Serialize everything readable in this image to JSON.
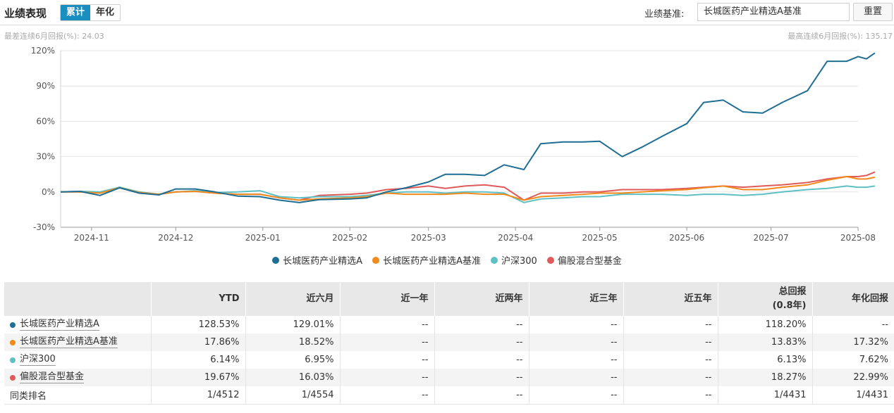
{
  "header": {
    "title": "业绩表现",
    "tabs": [
      {
        "label": "累计",
        "active": true
      },
      {
        "label": "年化",
        "active": false
      }
    ],
    "benchmark_label": "业绩基准:",
    "benchmark_value": "长城医药产业精选A基准",
    "reset_label": "重置"
  },
  "notes": {
    "left": "最差连续6月回报(%): 24.03",
    "right": "最高连续6月回报(%): 135.17"
  },
  "chart_data": {
    "type": "line",
    "title": "",
    "xlabel": "",
    "ylabel": "",
    "ylim": [
      -30,
      120
    ],
    "y_ticks": [
      -30,
      0,
      30,
      60,
      90,
      120
    ],
    "y_tick_labels": [
      "-30%",
      "0%",
      "30%",
      "60%",
      "90%",
      "120%"
    ],
    "x_range": [
      "2024-10-21",
      "2025-08-01"
    ],
    "x_ticks": [
      "2024-11-01",
      "2024-12-01",
      "2025-01-01",
      "2025-02-01",
      "2025-03-01",
      "2025-04-01",
      "2025-05-01",
      "2025-06-01",
      "2025-07-01",
      "2025-08-01"
    ],
    "x_tick_labels": [
      "2024-11",
      "2024-12",
      "2025-01",
      "2025-02",
      "2025-03",
      "2025-04",
      "2025-05",
      "2025-06",
      "2025-07",
      "2025-08"
    ],
    "grid": true,
    "legend_position": "bottom",
    "series": [
      {
        "name": "长城医药产业精选A",
        "color": "#1f6e94",
        "points": [
          [
            "2024-10-21",
            0
          ],
          [
            "2024-10-28",
            0.5
          ],
          [
            "2024-11-04",
            -3
          ],
          [
            "2024-11-11",
            3.5
          ],
          [
            "2024-11-18",
            -1
          ],
          [
            "2024-11-25",
            -2.5
          ],
          [
            "2024-12-01",
            2.5
          ],
          [
            "2024-12-08",
            2.5
          ],
          [
            "2024-12-15",
            0
          ],
          [
            "2024-12-23",
            -3.5
          ],
          [
            "2024-12-31",
            -4
          ],
          [
            "2025-01-07",
            -7
          ],
          [
            "2025-01-14",
            -9
          ],
          [
            "2025-01-21",
            -6.5
          ],
          [
            "2025-02-01",
            -6
          ],
          [
            "2025-02-07",
            -5
          ],
          [
            "2025-02-14",
            0
          ],
          [
            "2025-02-21",
            3.5
          ],
          [
            "2025-03-01",
            8.5
          ],
          [
            "2025-03-07",
            15
          ],
          [
            "2025-03-14",
            15
          ],
          [
            "2025-03-21",
            14
          ],
          [
            "2025-03-28",
            23
          ],
          [
            "2025-04-04",
            19
          ],
          [
            "2025-04-10",
            41
          ],
          [
            "2025-04-18",
            42.5
          ],
          [
            "2025-04-25",
            42.5
          ],
          [
            "2025-05-01",
            43
          ],
          [
            "2025-05-09",
            30
          ],
          [
            "2025-05-16",
            38
          ],
          [
            "2025-05-23",
            47
          ],
          [
            "2025-06-01",
            58
          ],
          [
            "2025-06-07",
            76
          ],
          [
            "2025-06-14",
            78
          ],
          [
            "2025-06-21",
            68
          ],
          [
            "2025-06-28",
            67
          ],
          [
            "2025-07-05",
            76
          ],
          [
            "2025-07-14",
            86
          ],
          [
            "2025-07-21",
            111
          ],
          [
            "2025-07-28",
            111
          ],
          [
            "2025-08-01",
            115
          ],
          [
            "2025-08-04",
            113
          ],
          [
            "2025-08-07",
            118
          ]
        ]
      },
      {
        "name": "长城医药产业精选A基准",
        "color": "#f08a1c",
        "points": [
          [
            "2024-10-21",
            0
          ],
          [
            "2024-10-28",
            0
          ],
          [
            "2024-11-04",
            -1
          ],
          [
            "2024-11-11",
            3.5
          ],
          [
            "2024-11-18",
            -0.5
          ],
          [
            "2024-11-25",
            -2
          ],
          [
            "2024-12-01",
            0
          ],
          [
            "2024-12-08",
            0.5
          ],
          [
            "2024-12-15",
            -1
          ],
          [
            "2024-12-23",
            -2
          ],
          [
            "2024-12-31",
            -2
          ],
          [
            "2025-01-07",
            -5
          ],
          [
            "2025-01-14",
            -7
          ],
          [
            "2025-01-21",
            -6
          ],
          [
            "2025-02-01",
            -5
          ],
          [
            "2025-02-07",
            -4
          ],
          [
            "2025-02-14",
            -1
          ],
          [
            "2025-02-21",
            -2
          ],
          [
            "2025-03-01",
            -2
          ],
          [
            "2025-03-07",
            -2
          ],
          [
            "2025-03-14",
            -1
          ],
          [
            "2025-03-21",
            -2
          ],
          [
            "2025-03-28",
            -2
          ],
          [
            "2025-04-04",
            -7
          ],
          [
            "2025-04-10",
            -4
          ],
          [
            "2025-04-18",
            -3
          ],
          [
            "2025-04-25",
            -2
          ],
          [
            "2025-05-01",
            -1
          ],
          [
            "2025-05-09",
            -1
          ],
          [
            "2025-05-16",
            0
          ],
          [
            "2025-05-23",
            1
          ],
          [
            "2025-06-01",
            2
          ],
          [
            "2025-06-07",
            3.5
          ],
          [
            "2025-06-14",
            5
          ],
          [
            "2025-06-21",
            2
          ],
          [
            "2025-06-28",
            2
          ],
          [
            "2025-07-05",
            4
          ],
          [
            "2025-07-14",
            6
          ],
          [
            "2025-07-21",
            10
          ],
          [
            "2025-07-28",
            13
          ],
          [
            "2025-08-01",
            11
          ],
          [
            "2025-08-04",
            11
          ],
          [
            "2025-08-07",
            12.5
          ]
        ]
      },
      {
        "name": "沪深300",
        "color": "#5ec0c4",
        "points": [
          [
            "2024-10-21",
            0
          ],
          [
            "2024-10-28",
            0.5
          ],
          [
            "2024-11-04",
            0
          ],
          [
            "2024-11-11",
            4
          ],
          [
            "2024-11-18",
            0
          ],
          [
            "2024-11-25",
            -2
          ],
          [
            "2024-12-01",
            0
          ],
          [
            "2024-12-08",
            1
          ],
          [
            "2024-12-15",
            -0.5
          ],
          [
            "2024-12-23",
            0
          ],
          [
            "2024-12-31",
            1
          ],
          [
            "2025-01-07",
            -4
          ],
          [
            "2025-01-14",
            -5
          ],
          [
            "2025-01-21",
            -4
          ],
          [
            "2025-02-01",
            -4
          ],
          [
            "2025-02-07",
            -3
          ],
          [
            "2025-02-14",
            -1
          ],
          [
            "2025-02-21",
            0
          ],
          [
            "2025-03-01",
            0
          ],
          [
            "2025-03-07",
            -1
          ],
          [
            "2025-03-14",
            0
          ],
          [
            "2025-03-21",
            0
          ],
          [
            "2025-03-28",
            -1
          ],
          [
            "2025-04-04",
            -9
          ],
          [
            "2025-04-10",
            -6
          ],
          [
            "2025-04-18",
            -5
          ],
          [
            "2025-04-25",
            -4
          ],
          [
            "2025-05-01",
            -4
          ],
          [
            "2025-05-09",
            -2
          ],
          [
            "2025-05-16",
            -2
          ],
          [
            "2025-05-23",
            -2
          ],
          [
            "2025-06-01",
            -3
          ],
          [
            "2025-06-07",
            -2
          ],
          [
            "2025-06-14",
            -2
          ],
          [
            "2025-06-21",
            -3
          ],
          [
            "2025-06-28",
            -2
          ],
          [
            "2025-07-05",
            0
          ],
          [
            "2025-07-14",
            2
          ],
          [
            "2025-07-21",
            3
          ],
          [
            "2025-07-28",
            5
          ],
          [
            "2025-08-01",
            4
          ],
          [
            "2025-08-04",
            4
          ],
          [
            "2025-08-07",
            5
          ]
        ]
      },
      {
        "name": "偏股混合型基金",
        "color": "#e05a5a",
        "points": [
          [
            "2024-10-21",
            0
          ],
          [
            "2024-10-28",
            0
          ],
          [
            "2024-11-04",
            -1
          ],
          [
            "2024-11-11",
            4
          ],
          [
            "2024-11-18",
            -1
          ],
          [
            "2024-11-25",
            -2
          ],
          [
            "2024-12-01",
            0
          ],
          [
            "2024-12-08",
            0.5
          ],
          [
            "2024-12-15",
            -1
          ],
          [
            "2024-12-23",
            -2
          ],
          [
            "2024-12-31",
            -2
          ],
          [
            "2025-01-07",
            -5
          ],
          [
            "2025-01-14",
            -7
          ],
          [
            "2025-01-21",
            -3
          ],
          [
            "2025-02-01",
            -2
          ],
          [
            "2025-02-07",
            -1
          ],
          [
            "2025-02-14",
            2
          ],
          [
            "2025-02-21",
            3
          ],
          [
            "2025-03-01",
            5
          ],
          [
            "2025-03-07",
            3
          ],
          [
            "2025-03-14",
            5
          ],
          [
            "2025-03-21",
            6
          ],
          [
            "2025-03-28",
            4
          ],
          [
            "2025-04-04",
            -7
          ],
          [
            "2025-04-10",
            -1
          ],
          [
            "2025-04-18",
            -1
          ],
          [
            "2025-04-25",
            0
          ],
          [
            "2025-05-01",
            0
          ],
          [
            "2025-05-09",
            2
          ],
          [
            "2025-05-16",
            2
          ],
          [
            "2025-05-23",
            2
          ],
          [
            "2025-06-01",
            3
          ],
          [
            "2025-06-07",
            4
          ],
          [
            "2025-06-14",
            5
          ],
          [
            "2025-06-21",
            4
          ],
          [
            "2025-06-28",
            5
          ],
          [
            "2025-07-05",
            6
          ],
          [
            "2025-07-14",
            8
          ],
          [
            "2025-07-21",
            11
          ],
          [
            "2025-07-28",
            13
          ],
          [
            "2025-08-01",
            13
          ],
          [
            "2025-08-04",
            14
          ],
          [
            "2025-08-07",
            17
          ]
        ]
      }
    ]
  },
  "table": {
    "headers": [
      "",
      "YTD",
      "近六月",
      "近一年",
      "近两年",
      "近三年",
      "近五年",
      "总回报\n(0.8年)",
      "年化回报"
    ],
    "rows": [
      {
        "name": "长城医药产业精选A",
        "color": "#1f6e94",
        "values": [
          "128.53%",
          "129.01%",
          "--",
          "--",
          "--",
          "--",
          "118.20%",
          "--"
        ]
      },
      {
        "name": "长城医药产业精选A基准",
        "color": "#f08a1c",
        "values": [
          "17.86%",
          "18.52%",
          "--",
          "--",
          "--",
          "--",
          "13.83%",
          "17.32%"
        ]
      },
      {
        "name": "沪深300",
        "color": "#5ec0c4",
        "values": [
          "6.14%",
          "6.95%",
          "--",
          "--",
          "--",
          "--",
          "6.13%",
          "7.62%"
        ]
      },
      {
        "name": "偏股混合型基金",
        "color": "#e05a5a",
        "values": [
          "19.67%",
          "16.03%",
          "--",
          "--",
          "--",
          "--",
          "18.27%",
          "22.99%"
        ]
      },
      {
        "name": "同类排名",
        "color": "",
        "values": [
          "1/4512",
          "1/4554",
          "--",
          "--",
          "--",
          "--",
          "1/4431",
          "1/4431"
        ]
      }
    ]
  }
}
